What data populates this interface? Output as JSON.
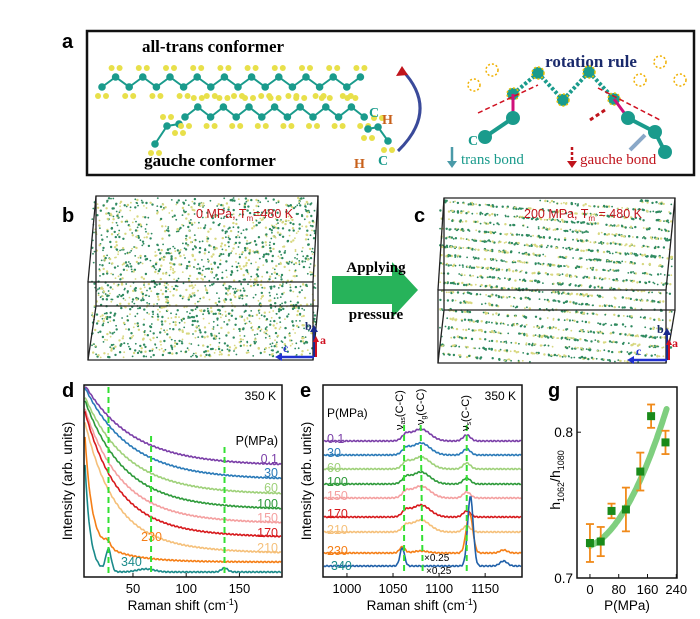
{
  "panel_a": {
    "label": "a",
    "all_trans_title": "all-trans conformer",
    "gauche_title": "gauche conformer",
    "rotation_title": "rotation rule",
    "atom_c": "C",
    "atom_h": "H",
    "trans_legend": "trans bond",
    "gauche_legend": "gauche bond",
    "colors": {
      "carbon": "#1a9b8c",
      "hydrogen": "#e8e04a",
      "trans": "#1a9b8c",
      "gauche": "#c0141c",
      "title": "#1a2a6c"
    }
  },
  "panel_b": {
    "label": "b",
    "condition": "0 MPa, T",
    "sub": "m",
    "condition_rest": "=480 K",
    "axis_b": "b",
    "axis_a": "a",
    "axis_c": "c"
  },
  "panel_c": {
    "label": "c",
    "condition": "200 MPa, T",
    "sub": "m",
    "condition_rest": " = 480 K",
    "axis_b": "b",
    "axis_a": "a",
    "axis_c": "c"
  },
  "arrow": {
    "top_text": "Applying",
    "bottom_text": "pressure",
    "color": "#27b35a"
  },
  "chart_data": [
    {
      "panel": "d",
      "type": "line",
      "annotation": "350 K",
      "legend_title": "P(MPa)",
      "xlabel": "Raman shift (cm",
      "xlabel_sup": "-1",
      "xlabel_end": ")",
      "ylabel": "Intensity (arb. units)",
      "xlim": [
        4,
        190
      ],
      "xticks": [
        50,
        100,
        150
      ],
      "dashed_lines": [
        27,
        67,
        136
      ],
      "series": [
        {
          "name": "0.1",
          "color": "#7b3fa8"
        },
        {
          "name": "30",
          "color": "#2a7ab8"
        },
        {
          "name": "60",
          "color": "#9fd17a"
        },
        {
          "name": "100",
          "color": "#2e9a3a"
        },
        {
          "name": "150",
          "color": "#f4a0a0"
        },
        {
          "name": "170",
          "color": "#d7191c"
        },
        {
          "name": "210",
          "color": "#f5c07a"
        },
        {
          "name": "230",
          "color": "#f57f17"
        },
        {
          "name": "340",
          "color": "#1a8a8a"
        }
      ]
    },
    {
      "panel": "e",
      "type": "line",
      "annotation": "350 K",
      "legend_title": "P(MPa)",
      "xlabel": "Raman shift (cm",
      "xlabel_sup": "-1",
      "xlabel_end": ")",
      "ylabel": "Intensity (arb. units)",
      "xlim": [
        974,
        1190
      ],
      "xticks": [
        1000,
        1050,
        1100,
        1150
      ],
      "dashed_lines": [
        1062,
        1080,
        1130
      ],
      "peak_labels": [
        "ν",
        "(C-C)"
      ],
      "peak_subs": [
        "as",
        "g",
        "s"
      ],
      "scale_notes": [
        "×0.25",
        "×0.25"
      ],
      "series": [
        {
          "name": "0.1",
          "color": "#7b3fa8"
        },
        {
          "name": "30",
          "color": "#2a7ab8"
        },
        {
          "name": "60",
          "color": "#9fd17a"
        },
        {
          "name": "100",
          "color": "#2e9a3a"
        },
        {
          "name": "150",
          "color": "#f4a0a0"
        },
        {
          "name": "170",
          "color": "#d7191c"
        },
        {
          "name": "210",
          "color": "#f5c07a"
        },
        {
          "name": "230",
          "color": "#f57f17"
        },
        {
          "name": "340",
          "color": "#2060a8",
          "label_color": "#1a8a8a"
        }
      ]
    },
    {
      "panel": "g",
      "type": "scatter",
      "xlabel": "P(MPa)",
      "ylabel": "h",
      "ylabel_sub1": "1062",
      "ylabel_mid": "/h",
      "ylabel_sub2": "1080",
      "xlim": [
        -36,
        242
      ],
      "ylim": [
        0.7,
        0.831
      ],
      "xticks": [
        0,
        80,
        160,
        240
      ],
      "yticks": [
        0.7,
        0.8
      ],
      "points": [
        {
          "x": 0,
          "y": 0.724,
          "err": 0.013
        },
        {
          "x": 30,
          "y": 0.725,
          "err": 0.01
        },
        {
          "x": 60,
          "y": 0.746,
          "err": 0.005
        },
        {
          "x": 100,
          "y": 0.747,
          "err": 0.015
        },
        {
          "x": 140,
          "y": 0.773,
          "err": 0.013
        },
        {
          "x": 170,
          "y": 0.811,
          "err": 0.008
        },
        {
          "x": 210,
          "y": 0.793,
          "err": 0.008
        }
      ],
      "marker_color": "#1a8a1a",
      "error_color": "#f08a1a",
      "fit_color": "#7fcf7f"
    }
  ]
}
